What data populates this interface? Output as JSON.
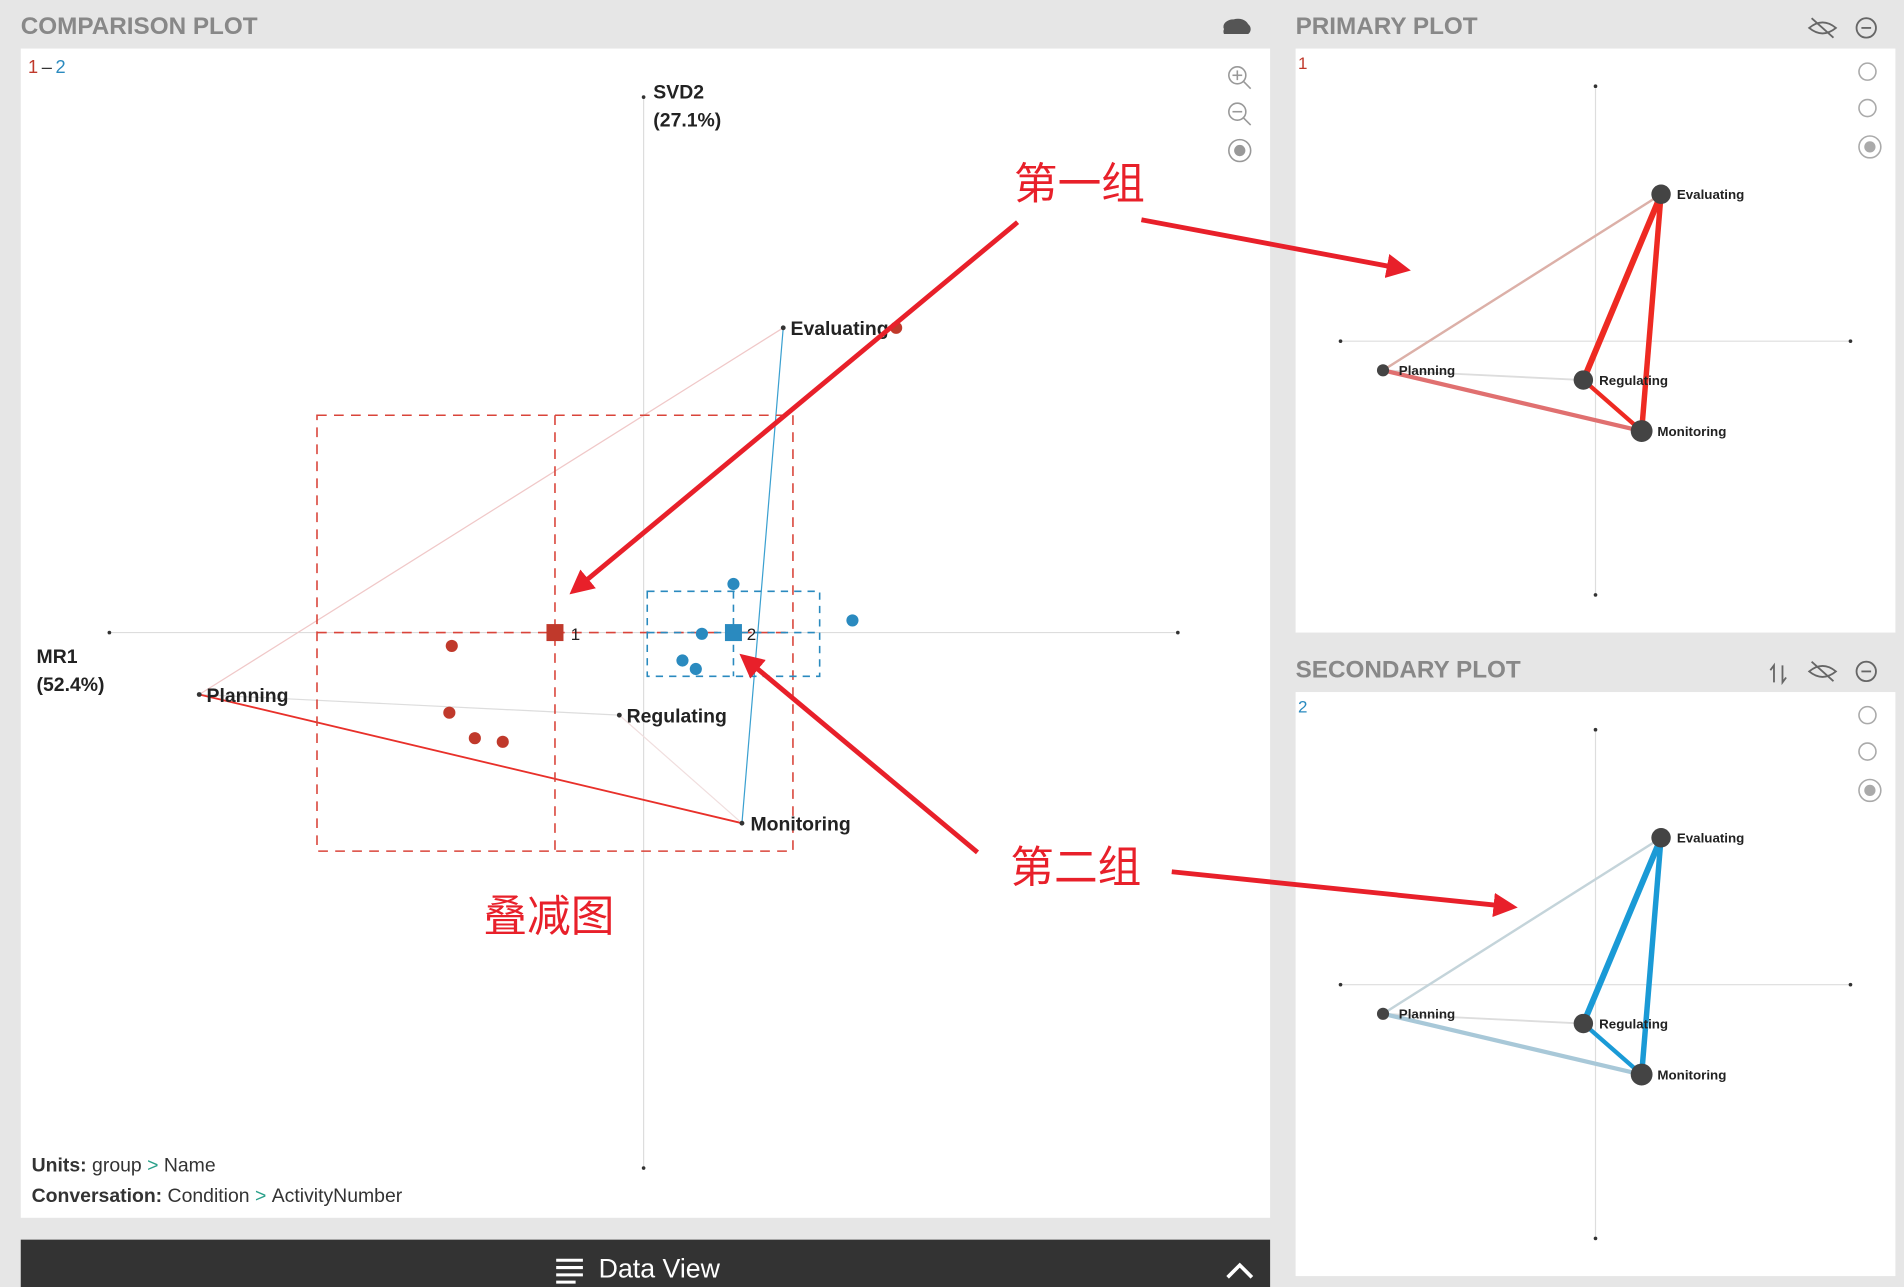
{
  "comparison": {
    "title": "COMPARISON PLOT",
    "legend": [
      "1",
      "–",
      "2"
    ],
    "y_axis": [
      "SVD2",
      "(27.1%)"
    ],
    "x_axis": [
      "MR1",
      "(52.4%)"
    ],
    "nodes": [
      "Evaluating",
      "Planning",
      "Regulating",
      "Monitoring"
    ],
    "means": [
      "1",
      "2"
    ],
    "separator": ">",
    "units": {
      "label": "Units:",
      "path": [
        "group",
        "Name"
      ]
    },
    "conversation": {
      "label": "Conversation:",
      "path": [
        "Condition",
        "ActivityNumber"
      ]
    }
  },
  "data_view": "Data View",
  "primary": {
    "title": "PRIMARY PLOT",
    "group": "1",
    "nodes": [
      "Evaluating",
      "Planning",
      "Regulating",
      "Monitoring"
    ]
  },
  "secondary": {
    "title": "SECONDARY PLOT",
    "group": "2",
    "nodes": [
      "Evaluating",
      "Planning",
      "Regulating",
      "Monitoring"
    ]
  },
  "annotations": [
    "第一组",
    "第二组",
    "叠减图"
  ]
}
